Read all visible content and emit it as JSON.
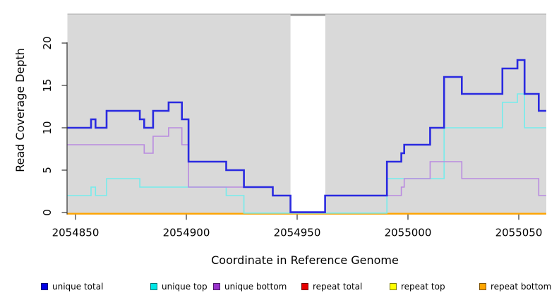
{
  "chart_data": {
    "type": "line",
    "step": true,
    "title": "",
    "xlabel": "Coordinate in Reference Genome",
    "ylabel": "Read Coverage Depth",
    "x_ticks": [
      2054850,
      2054900,
      2054950,
      2055000,
      2055050
    ],
    "y_ticks": [
      0,
      5,
      10,
      15,
      20
    ],
    "xlim": [
      2054846.3,
      2055062.4
    ],
    "ylim": [
      0,
      23.5
    ],
    "grid": false,
    "legend_position": "bottom",
    "plot_background": "#d9d9d9",
    "top_border_color": "#b5b5b5",
    "axis_color": "#333333",
    "masked_region": {
      "x_start": 2054947,
      "x_end": 2054962.7,
      "fill": "#ffffff",
      "cap_color": "#8a8a8a"
    },
    "series": [
      {
        "name": "unique total",
        "color": "#2a2ae0",
        "steps": [
          [
            2054846.3,
            10
          ],
          [
            2054857,
            11
          ],
          [
            2054859,
            10
          ],
          [
            2054864,
            12
          ],
          [
            2054879,
            11
          ],
          [
            2054881,
            10
          ],
          [
            2054885,
            12
          ],
          [
            2054892,
            13
          ],
          [
            2054898,
            11
          ],
          [
            2054901,
            6
          ],
          [
            2054918,
            5
          ],
          [
            2054926,
            3
          ],
          [
            2054939,
            2
          ],
          [
            2054947,
            0
          ],
          [
            2054962.6,
            2
          ],
          [
            2054990.5,
            6
          ],
          [
            2054997,
            7
          ],
          [
            2054998.3,
            8
          ],
          [
            2055010,
            10
          ],
          [
            2055016.3,
            16
          ],
          [
            2055024.3,
            14
          ],
          [
            2055042.6,
            17
          ],
          [
            2055049.4,
            18
          ],
          [
            2055052.6,
            14
          ],
          [
            2055059,
            12
          ],
          [
            2055062.4,
            12
          ]
        ]
      },
      {
        "name": "unique top",
        "color": "#76ecec",
        "steps": [
          [
            2054846.3,
            2
          ],
          [
            2054857,
            3
          ],
          [
            2054859,
            2
          ],
          [
            2054864,
            4
          ],
          [
            2054879,
            3
          ],
          [
            2054918,
            2
          ],
          [
            2054926,
            0
          ],
          [
            2054990.5,
            4
          ],
          [
            2055016.3,
            10
          ],
          [
            2055042.6,
            13
          ],
          [
            2055049.4,
            14
          ],
          [
            2055052.6,
            10
          ],
          [
            2055062.4,
            10
          ]
        ]
      },
      {
        "name": "unique bottom",
        "color": "#b98ae0",
        "steps": [
          [
            2054846.3,
            8
          ],
          [
            2054881,
            7
          ],
          [
            2054885,
            9
          ],
          [
            2054892,
            10
          ],
          [
            2054898,
            8
          ],
          [
            2054901,
            3
          ],
          [
            2054939,
            2
          ],
          [
            2054947,
            0
          ],
          [
            2054962.6,
            2
          ],
          [
            2054997,
            3
          ],
          [
            2054998.3,
            4
          ],
          [
            2055010,
            6
          ],
          [
            2055024.3,
            4
          ],
          [
            2055059,
            2
          ],
          [
            2055062.4,
            2
          ]
        ]
      },
      {
        "name": "repeat total",
        "color": "#e60000",
        "steps": [
          [
            2054846.3,
            0
          ],
          [
            2055062.4,
            0
          ]
        ]
      },
      {
        "name": "repeat top",
        "color": "#ffff00",
        "steps": [
          [
            2054846.3,
            0
          ],
          [
            2055062.4,
            0
          ]
        ]
      },
      {
        "name": "repeat bottom",
        "color": "#ffa500",
        "steps": [
          [
            2054846.3,
            0
          ],
          [
            2055062.4,
            0
          ]
        ]
      }
    ]
  },
  "legend": {
    "items": [
      {
        "label": "unique total",
        "swatch": "#0000e6"
      },
      {
        "label": "unique top",
        "swatch": "#00e6e6"
      },
      {
        "label": "unique bottom",
        "swatch": "#9933cc"
      },
      {
        "label": "repeat total",
        "swatch": "#e60000"
      },
      {
        "label": "repeat top",
        "swatch": "#ffff00"
      },
      {
        "label": "repeat bottom",
        "swatch": "#ffa500"
      }
    ]
  }
}
